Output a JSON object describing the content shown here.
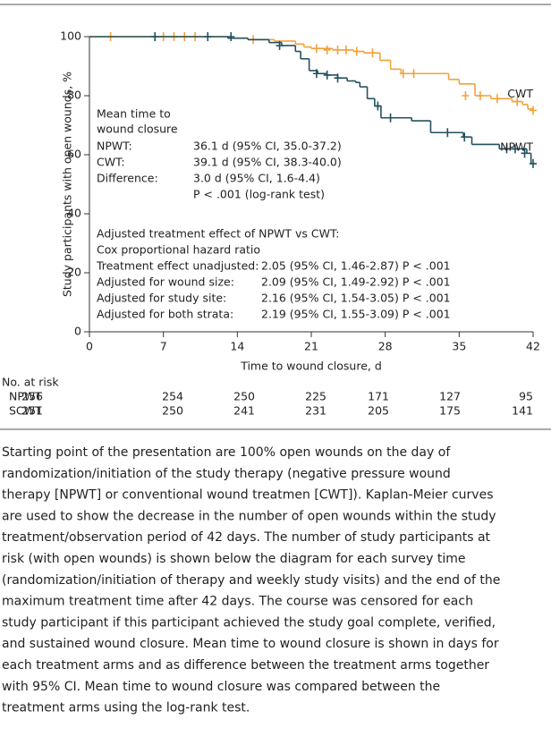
{
  "chart_data": {
    "type": "km",
    "xlabel": "Time to wound closure, d",
    "ylabel": "Study participants with open wounds, %",
    "xlim": [
      0,
      42
    ],
    "xticks": [
      0,
      7,
      14,
      21,
      28,
      35,
      42
    ],
    "ylim": [
      0,
      100
    ],
    "yticks": [
      0,
      20,
      40,
      60,
      80,
      100
    ],
    "series": [
      {
        "name": "CWT",
        "color": "#f2a23a",
        "x": [
          0,
          13.1,
          15,
          17.5,
          19.5,
          20.3,
          21,
          23,
          25,
          26,
          27.5,
          28.5,
          29.5,
          34,
          35,
          36.5,
          38,
          40,
          41,
          41.5,
          42
        ],
        "values": [
          100,
          99.5,
          99,
          98.5,
          97.5,
          96.5,
          96,
          95.5,
          95,
          94.5,
          92,
          89,
          87.5,
          85.5,
          84,
          80,
          79,
          78,
          77,
          75.5,
          75
        ],
        "censored": {
          "x": [
            2,
            7,
            8,
            9,
            10,
            15.5,
            21.5,
            22.5,
            23.5,
            24.3,
            25.3,
            26.8,
            29.7,
            30.7,
            35.6,
            37,
            38.6,
            40.5,
            42
          ],
          "y": [
            100,
            100,
            100,
            100,
            100,
            99,
            96,
            95.5,
            95.5,
            95.5,
            95,
            94.5,
            87.5,
            87.5,
            80,
            80,
            79,
            78,
            75
          ]
        }
      },
      {
        "name": "NPWT",
        "color": "#23505f",
        "x": [
          0,
          13.1,
          15,
          17,
          18.2,
          19.5,
          20,
          20.8,
          21.6,
          22.5,
          23.5,
          24.4,
          25.2,
          25.6,
          26.3,
          27,
          27.6,
          30.5,
          32.3,
          35.4,
          36.2,
          38.8,
          41.4,
          41.8,
          42
        ],
        "values": [
          100,
          99.5,
          99,
          98,
          97,
          95,
          92.5,
          88.5,
          87.5,
          87,
          86,
          85,
          84.5,
          83,
          79,
          76.5,
          72.5,
          71.5,
          67.5,
          66,
          63.5,
          62,
          60.5,
          57,
          57
        ],
        "censored": {
          "x": [
            6.2,
            11.2,
            13.4,
            18,
            21.5,
            22.5,
            23.5,
            27.3,
            28.5,
            33.9,
            35.5,
            39.5,
            40.3,
            41.2,
            42
          ],
          "y": [
            100,
            100,
            100,
            97,
            87.5,
            87,
            86,
            76.5,
            72.5,
            67.5,
            66,
            62,
            62,
            60.5,
            57
          ]
        }
      }
    ],
    "mean_time": {
      "title": [
        "Mean time to",
        "wound closure"
      ],
      "rows": [
        [
          "NPWT:",
          "36.1 d (95% CI, 35.0-37.2)"
        ],
        [
          "CWT:",
          "39.1 d (95% CI, 38.3-40.0)"
        ],
        [
          "Difference:",
          "3.0 d (95% CI, 1.6-4.4)"
        ]
      ],
      "note": "P < .001 (log-rank test)"
    },
    "hazard": {
      "title": [
        "Adjusted treatment effect of NPWT vs CWT:",
        "Cox proportional hazard ratio"
      ],
      "rows": [
        [
          "Treatment effect unadjusted:",
          "2.05 (95% CI, 1.46-2.87) P < .001"
        ],
        [
          "Adjusted for wound size:",
          "2.09 (95% CI, 1.49-2.92) P < .001"
        ],
        [
          "Adjusted for study site:",
          "2.16 (95% CI, 1.54-3.05) P < .001"
        ],
        [
          "Adjusted for both strata:",
          "2.19 (95% CI, 1.55-3.09) P < .001"
        ]
      ]
    },
    "risk_table": {
      "title": "No. at risk",
      "rows": [
        {
          "name": "NPWT",
          "values": [
            256,
            254,
            250,
            225,
            171,
            127,
            95
          ]
        },
        {
          "name": "SCWT",
          "values": [
            251,
            250,
            241,
            231,
            205,
            175,
            141
          ]
        }
      ]
    },
    "caption": [
      "Starting point of the presentation are 100% open wounds on the day of",
      "randomization/initiation of the study therapy (negative pressure wound",
      "therapy [NPWT] or conventional wound treatmen [CWT]). Kaplan-Meier curves",
      "are used to show the decrease in the number of open wounds within the study",
      "treatment/observation period of 42 days. The number of study participants at",
      "risk (with open wounds) is shown below the diagram for each survey time",
      "(randomization/initiation of therapy and weekly study visits) and the end of the",
      "maximum treatment time after 42 days. The course was censored for each",
      "study participant if this participant achieved the study goal complete, verified,",
      "and sustained wound closure. Mean time to wound closure is shown in days for",
      "each treatment arms and as difference between the treatment arms together",
      "with 95% CI. Mean time to wound closure was compared between the",
      "treatment arms using the log-rank test."
    ]
  }
}
